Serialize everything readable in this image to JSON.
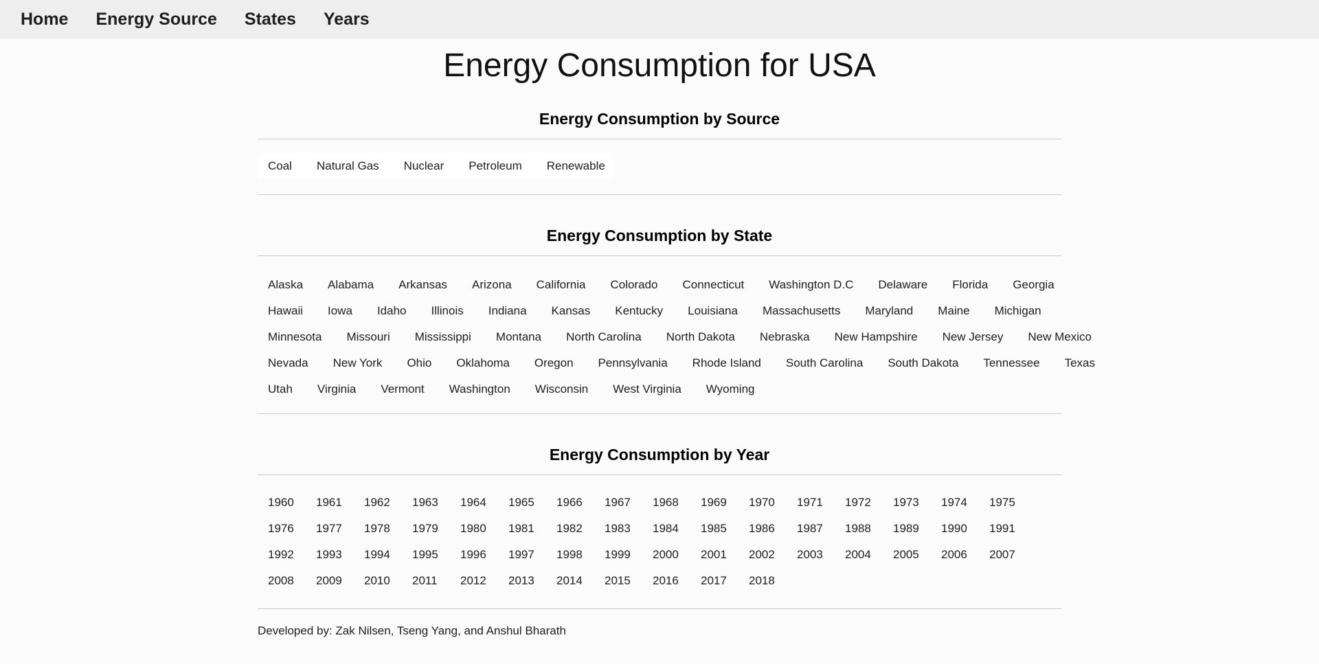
{
  "navbar": {
    "items": [
      "Home",
      "Energy Source",
      "States",
      "Years"
    ]
  },
  "title": "Energy Consumption for USA",
  "sections": {
    "source": {
      "heading": "Energy Consumption by Source",
      "links": [
        "Coal",
        "Natural Gas",
        "Nuclear",
        "Petroleum",
        "Renewable"
      ]
    },
    "state": {
      "heading": "Energy Consumption by State",
      "rows": [
        [
          "Alaska",
          "Alabama",
          "Arkansas",
          "Arizona",
          "California",
          "Colorado",
          "Connecticut",
          "Washington D.C",
          "Delaware",
          "Florida",
          "Georgia"
        ],
        [
          "Hawaii",
          "Iowa",
          "Idaho",
          "Illinois",
          "Indiana",
          "Kansas",
          "Kentucky",
          "Louisiana",
          "Massachusetts",
          "Maryland",
          "Maine",
          "Michigan"
        ],
        [
          "Minnesota",
          "Missouri",
          "Mississippi",
          "Montana",
          "North Carolina",
          "North Dakota",
          "Nebraska",
          "New Hampshire",
          "New Jersey",
          "New Mexico"
        ],
        [
          "Nevada",
          "New York",
          "Ohio",
          "Oklahoma",
          "Oregon",
          "Pennsylvania",
          "Rhode Island",
          "South Carolina",
          "South Dakota",
          "Tennessee",
          "Texas"
        ],
        [
          "Utah",
          "Virginia",
          "Vermont",
          "Washington",
          "Wisconsin",
          "West Virginia",
          "Wyoming"
        ]
      ]
    },
    "year": {
      "heading": "Energy Consumption by Year",
      "rows": [
        [
          "1960",
          "1961",
          "1962",
          "1963",
          "1964",
          "1965",
          "1966",
          "1967",
          "1968",
          "1969",
          "1970",
          "1971",
          "1972",
          "1973",
          "1974",
          "1975"
        ],
        [
          "1976",
          "1977",
          "1978",
          "1979",
          "1980",
          "1981",
          "1982",
          "1983",
          "1984",
          "1985",
          "1986",
          "1987",
          "1988",
          "1989",
          "1990",
          "1991"
        ],
        [
          "1992",
          "1993",
          "1994",
          "1995",
          "1996",
          "1997",
          "1998",
          "1999",
          "2000",
          "2001",
          "2002",
          "2003",
          "2004",
          "2005",
          "2006",
          "2007"
        ],
        [
          "2008",
          "2009",
          "2010",
          "2011",
          "2012",
          "2013",
          "2014",
          "2015",
          "2016",
          "2017",
          "2018"
        ]
      ]
    }
  },
  "footer": {
    "text": "Developed by: Zak Nilsen, Tseng Yang, and Anshul Bharath"
  },
  "colors": {
    "navbar_bg": "#eeeeee",
    "page_bg": "#fbfbfb",
    "panel_bg": "#ffffff",
    "divider": "#c9c9c9",
    "text": "#161616"
  }
}
